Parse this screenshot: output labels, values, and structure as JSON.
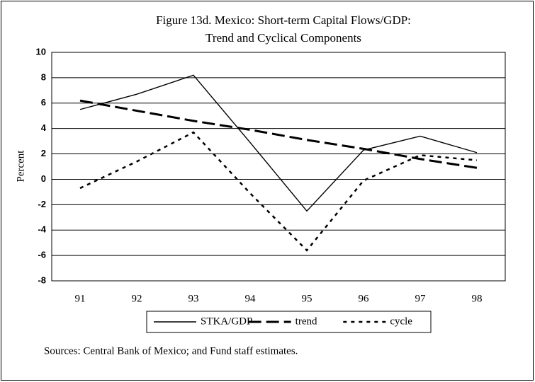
{
  "chart_data": {
    "type": "line",
    "title": "Figure 13d. Mexico: Short-term Capital Flows/GDP:",
    "subtitle": "Trend and Cyclical Components",
    "y_label": "Percent",
    "categories": [
      "91",
      "92",
      "93",
      "94",
      "95",
      "96",
      "97",
      "98"
    ],
    "series": [
      {
        "name": "STKA/GDP",
        "color": "#000000",
        "style": "solid",
        "values": [
          5.5,
          6.7,
          8.2,
          2.9,
          -2.5,
          2.3,
          3.4,
          2.1
        ]
      },
      {
        "name": "trend",
        "color": "#000000",
        "style": "dashed",
        "values": [
          6.2,
          5.4,
          4.6,
          3.9,
          3.1,
          2.4,
          1.6,
          0.9
        ]
      },
      {
        "name": "cycle",
        "color": "#000000",
        "style": "dotted",
        "values": [
          -0.7,
          1.4,
          3.7,
          -1.1,
          -5.6,
          -0.1,
          1.9,
          1.5
        ]
      }
    ],
    "ylim": [
      -8,
      10
    ],
    "yticks": [
      -8,
      -6,
      -4,
      -2,
      0,
      2,
      4,
      6,
      8,
      10
    ],
    "grid": true,
    "legend": "bottom",
    "source": "Sources:  Central Bank of Mexico; and Fund staff estimates."
  }
}
